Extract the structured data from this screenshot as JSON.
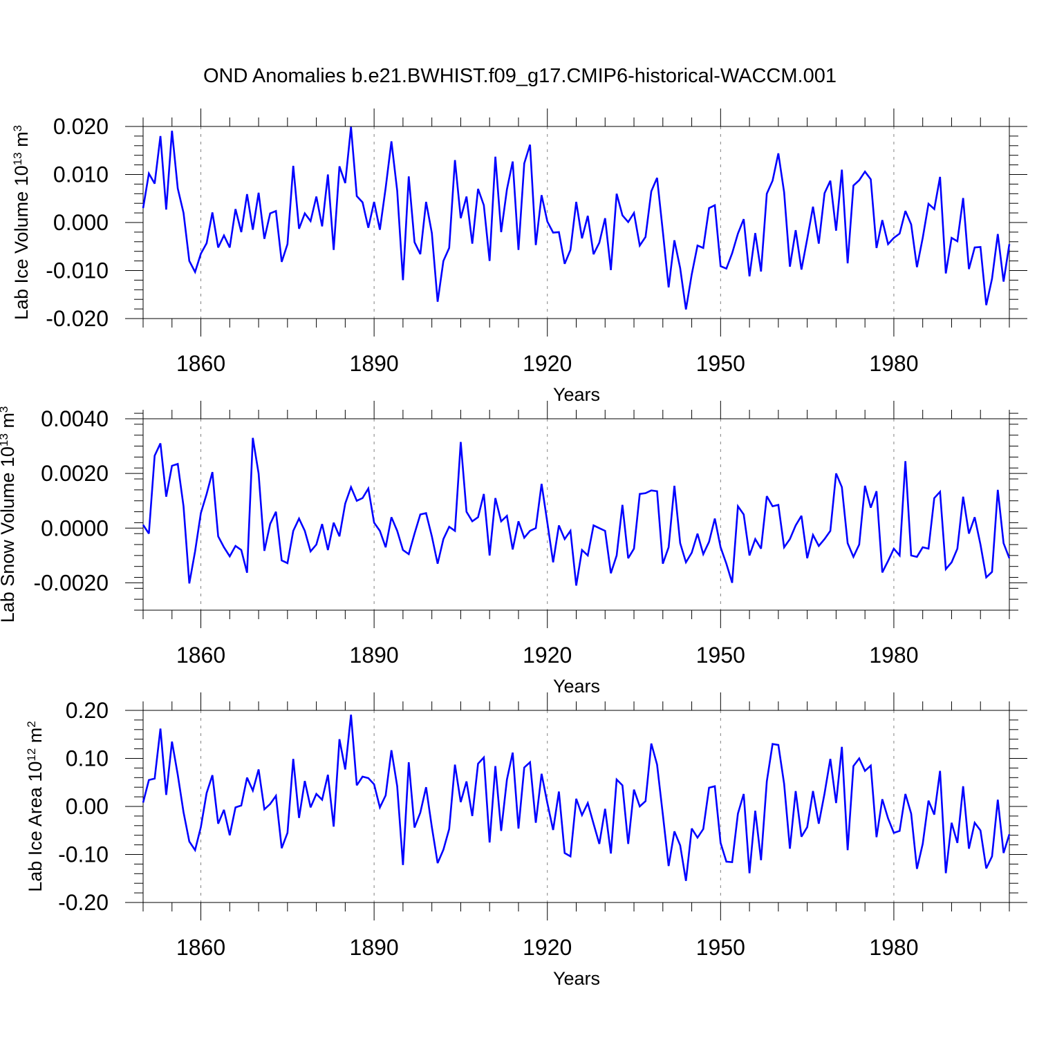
{
  "figure_title": "OND Anomalies b.e21.BWHIST.f09_g17.CMIP6-historical-WACCM.001",
  "colors": {
    "series": "#0000ff",
    "axis": "#000000",
    "grid": "#808080"
  },
  "chart_data": [
    {
      "type": "line",
      "title": "OND Anomalies b.e21.BWHIST.f09_g17.CMIP6-historical-WACCM.001",
      "xlabel": "Years",
      "ylabel": {
        "prefix": "Lab Ice Volume 10",
        "exponent": "13",
        "unit": " m",
        "unit_exponent": "3"
      },
      "xlim": [
        1850,
        2000
      ],
      "ylim": [
        -0.02,
        0.02
      ],
      "x_ticks": [
        1860,
        1890,
        1920,
        1950,
        1980
      ],
      "x_tick_labels": [
        "1860",
        "1890",
        "1920",
        "1950",
        "1980"
      ],
      "y_ticks": [
        0.02,
        0.01,
        0.0,
        -0.01,
        -0.02
      ],
      "y_tick_labels": [
        "0.020",
        "0.010",
        "0.000",
        "-0.010",
        "-0.020"
      ],
      "y_minor_step": 0.002,
      "grid": "x-dashed",
      "series": [
        {
          "name": "Lab Ice Volume",
          "x_start": 1850,
          "values": [
            0.003,
            0.0102,
            0.0081,
            0.018,
            0.0027,
            0.0191,
            0.0071,
            0.002,
            -0.008,
            -0.0103,
            -0.0065,
            -0.0043,
            0.0021,
            -0.0052,
            -0.0027,
            -0.0052,
            0.0028,
            -0.002,
            0.0059,
            -0.0015,
            0.0062,
            -0.0034,
            0.0019,
            0.0024,
            -0.0082,
            -0.0045,
            0.0118,
            -0.0013,
            0.0019,
            0.0003,
            0.0054,
            -0.0008,
            0.01,
            -0.0057,
            0.0117,
            0.0082,
            0.0199,
            0.0055,
            0.0042,
            -0.0011,
            0.0043,
            -0.0015,
            0.0072,
            0.0169,
            0.0066,
            -0.012,
            0.0096,
            -0.0041,
            -0.0066,
            0.0043,
            -0.0022,
            -0.0165,
            -0.008,
            -0.0053,
            0.013,
            0.0009,
            0.0054,
            -0.0044,
            0.007,
            0.0036,
            -0.008,
            0.0137,
            -0.002,
            0.0069,
            0.0127,
            -0.0057,
            0.0123,
            0.0162,
            -0.0047,
            0.0057,
            0.0002,
            -0.0021,
            -0.002,
            -0.0086,
            -0.0057,
            0.0043,
            -0.0033,
            0.0014,
            -0.0066,
            -0.0042,
            0.0009,
            -0.0099,
            0.006,
            0.0015,
            0.0001,
            0.002,
            -0.0048,
            -0.003,
            0.0065,
            0.0093,
            -0.0019,
            -0.0135,
            -0.0037,
            -0.0095,
            -0.0181,
            -0.0108,
            -0.0048,
            -0.0053,
            0.003,
            0.0036,
            -0.0091,
            -0.0096,
            -0.0064,
            -0.0023,
            0.0007,
            -0.0112,
            -0.0022,
            -0.0102,
            0.006,
            0.0087,
            0.0144,
            0.0063,
            -0.0092,
            -0.0016,
            -0.0098,
            -0.0034,
            0.0033,
            -0.0044,
            0.0061,
            0.0087,
            -0.0017,
            0.011,
            -0.0085,
            0.0077,
            0.0088,
            0.0106,
            0.009,
            -0.0053,
            0.0005,
            -0.0045,
            -0.0032,
            -0.0023,
            0.0024,
            -0.0004,
            -0.0093,
            -0.0032,
            0.0039,
            0.0028,
            0.0095,
            -0.0106,
            -0.0032,
            -0.0039,
            0.0051,
            -0.0097,
            -0.0052,
            -0.0051,
            -0.0172,
            -0.0117,
            -0.0024,
            -0.0123,
            -0.0045
          ]
        }
      ]
    },
    {
      "type": "line",
      "xlabel": "Years",
      "ylabel": {
        "prefix": "Lab Snow Volume 10",
        "exponent": "13",
        "unit": " m",
        "unit_exponent": "3"
      },
      "xlim": [
        1850,
        2000
      ],
      "ylim": [
        -0.003,
        0.004
      ],
      "x_ticks": [
        1860,
        1890,
        1920,
        1950,
        1980
      ],
      "x_tick_labels": [
        "1860",
        "1890",
        "1920",
        "1950",
        "1980"
      ],
      "y_ticks": [
        0.004,
        0.002,
        0.0,
        -0.002
      ],
      "y_tick_labels": [
        "0.0040",
        "0.0020",
        "0.0000",
        "-0.0020"
      ],
      "y_minor_step": 0.0004,
      "grid": "x-dashed",
      "series": [
        {
          "name": "Lab Snow Volume",
          "x_start": 1850,
          "values": [
            0.00012,
            -0.0002,
            0.00265,
            0.0031,
            0.00115,
            0.00228,
            0.00235,
            0.0008,
            -0.00202,
            -0.00085,
            0.00055,
            0.00125,
            0.00205,
            -0.0003,
            -0.0007,
            -0.00103,
            -0.00065,
            -0.0008,
            -0.00163,
            0.0033,
            0.002,
            -0.00083,
            0.00015,
            0.0006,
            -0.00118,
            -0.00128,
            -0.0001,
            0.00035,
            -0.0001,
            -0.00085,
            -0.0006,
            0.00015,
            -0.0008,
            0.0002,
            -0.0003,
            0.0009,
            0.0015,
            0.001,
            0.0011,
            0.00145,
            0.0002,
            -0.0001,
            -0.0007,
            0.0004,
            -0.0001,
            -0.0008,
            -0.00095,
            -0.0002,
            0.0005,
            0.00055,
            -0.0003,
            -0.0013,
            -0.0004,
            5e-05,
            -0.0001,
            0.00315,
            0.0006,
            0.00025,
            0.0004,
            0.00125,
            -0.001,
            0.0011,
            0.00025,
            0.00045,
            -0.00078,
            0.00025,
            -0.00035,
            -0.0001,
            0.0,
            0.00162,
            0.0002,
            -0.00125,
            0.0001,
            -0.0004,
            -0.0001,
            -0.0021,
            -0.0008,
            -0.001,
            0.0001,
            0.0,
            -0.0001,
            -0.00165,
            -0.001,
            0.00085,
            -0.0011,
            -0.00075,
            0.00125,
            0.00128,
            0.00138,
            0.00135,
            -0.0013,
            -0.0007,
            0.00155,
            -0.00055,
            -0.00125,
            -0.0009,
            -0.0002,
            -0.00095,
            -0.0005,
            0.00035,
            -0.0007,
            -0.0013,
            -0.002,
            0.0008,
            0.0005,
            -0.001,
            -0.0004,
            -0.00075,
            0.00117,
            0.0008,
            0.00085,
            -0.0007,
            -0.0004,
            0.0001,
            0.00045,
            -0.0011,
            -0.00025,
            -0.00065,
            -0.0004,
            -0.0001,
            0.002,
            0.0015,
            -0.00055,
            -0.00105,
            -0.0006,
            0.00155,
            0.00075,
            0.00135,
            -0.00162,
            -0.0012,
            -0.00075,
            -0.001,
            0.00245,
            -0.001,
            -0.00105,
            -0.0007,
            -0.00075,
            0.0011,
            0.00133,
            -0.0015,
            -0.00125,
            -0.00075,
            0.00115,
            -0.0002,
            0.0004,
            -0.0006,
            -0.0018,
            -0.0016,
            0.0014,
            -0.00055,
            -0.0011
          ]
        }
      ]
    },
    {
      "type": "line",
      "xlabel": "Years",
      "ylabel": {
        "prefix": "Lab Ice Area 10",
        "exponent": "12",
        "unit": " m",
        "unit_exponent": "2"
      },
      "xlim": [
        1850,
        2000
      ],
      "ylim": [
        -0.2,
        0.2
      ],
      "x_ticks": [
        1860,
        1890,
        1920,
        1950,
        1980
      ],
      "x_tick_labels": [
        "1860",
        "1890",
        "1920",
        "1950",
        "1980"
      ],
      "y_ticks": [
        0.2,
        0.1,
        0.0,
        -0.1,
        -0.2
      ],
      "y_tick_labels": [
        "0.20",
        "0.10",
        "0.00",
        "-0.10",
        "-0.20"
      ],
      "y_minor_step": 0.02,
      "grid": "x-dashed",
      "series": [
        {
          "name": "Lab Ice Area",
          "x_start": 1850,
          "values": [
            0.008,
            0.055,
            0.058,
            0.162,
            0.024,
            0.135,
            0.066,
            -0.012,
            -0.073,
            -0.091,
            -0.043,
            0.028,
            0.065,
            -0.036,
            -0.007,
            -0.06,
            -0.002,
            0.002,
            0.06,
            0.033,
            0.077,
            -0.006,
            0.005,
            0.022,
            -0.087,
            -0.055,
            0.099,
            -0.024,
            0.053,
            -0.002,
            0.026,
            0.014,
            0.066,
            -0.042,
            0.14,
            0.077,
            0.191,
            0.044,
            0.062,
            0.059,
            0.046,
            -0.002,
            0.023,
            0.117,
            0.042,
            -0.122,
            0.092,
            -0.044,
            -0.013,
            0.04,
            -0.043,
            -0.118,
            -0.09,
            -0.047,
            0.087,
            0.009,
            0.052,
            -0.02,
            0.089,
            0.102,
            -0.075,
            0.084,
            -0.051,
            0.056,
            0.112,
            -0.046,
            0.081,
            0.092,
            -0.034,
            0.068,
            0.007,
            -0.049,
            0.031,
            -0.097,
            -0.104,
            0.016,
            -0.018,
            0.007,
            -0.036,
            -0.078,
            -0.005,
            -0.098,
            0.056,
            0.044,
            -0.078,
            0.035,
            0.0,
            0.011,
            0.131,
            0.087,
            -0.017,
            -0.124,
            -0.052,
            -0.081,
            -0.155,
            -0.046,
            -0.065,
            -0.047,
            0.039,
            0.042,
            -0.076,
            -0.115,
            -0.116,
            -0.015,
            0.026,
            -0.139,
            -0.009,
            -0.112,
            0.052,
            0.13,
            0.128,
            0.047,
            -0.088,
            0.032,
            -0.063,
            -0.043,
            0.032,
            -0.036,
            0.027,
            0.099,
            0.007,
            0.124,
            -0.091,
            0.084,
            0.1,
            0.074,
            0.085,
            -0.064,
            0.015,
            -0.025,
            -0.055,
            -0.051,
            0.026,
            -0.015,
            -0.13,
            -0.078,
            0.012,
            -0.017,
            0.074,
            -0.139,
            -0.034,
            -0.076,
            0.042,
            -0.088,
            -0.034,
            -0.05,
            -0.129,
            -0.104,
            0.014,
            -0.097,
            -0.058
          ]
        }
      ]
    }
  ]
}
